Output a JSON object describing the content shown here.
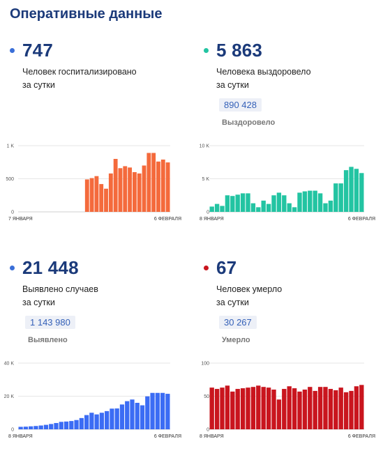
{
  "title": "Оперативные данные",
  "cards": [
    {
      "id": "hospitalized",
      "dot_color": "#3a6fd8",
      "value": "747",
      "desc_line1": "Человек госпитализировано",
      "desc_line2": "за сутки",
      "chart_data": {
        "type": "bar",
        "color": "#f46a3c",
        "y_ticks": [
          "1 K",
          "500",
          "0"
        ],
        "ylim": [
          0,
          1000
        ],
        "x_start_label": "7 ЯНВАРЯ",
        "x_end_label": "6 ФЕВРАЛЯ",
        "values": [
          null,
          null,
          null,
          null,
          null,
          null,
          null,
          null,
          null,
          null,
          null,
          null,
          null,
          null,
          490,
          510,
          540,
          420,
          350,
          580,
          800,
          660,
          690,
          670,
          600,
          580,
          700,
          890,
          890,
          760,
          790,
          747
        ]
      }
    },
    {
      "id": "recovered",
      "dot_color": "#23c4a2",
      "value": "5 863",
      "desc_line1": "Человека выздоровело",
      "desc_line2": "за сутки",
      "badge": "890 428",
      "badge_label": "Выздоровело",
      "chart_data": {
        "type": "bar",
        "color": "#23c4a2",
        "y_ticks": [
          "10 K",
          "5 K",
          "0"
        ],
        "ylim": [
          0,
          10000
        ],
        "x_start_label": "8 ЯНВАРЯ",
        "x_end_label": "6 ФЕВРАЛЯ",
        "values": [
          800,
          1200,
          900,
          2500,
          2400,
          2600,
          2800,
          2800,
          1300,
          700,
          1700,
          1200,
          2500,
          2900,
          2500,
          1300,
          700,
          2900,
          3100,
          3200,
          3200,
          2800,
          1300,
          1700,
          4300,
          4300,
          6300,
          6800,
          6500,
          5863
        ]
      }
    },
    {
      "id": "detected",
      "dot_color": "#3a6fd8",
      "value": "21 448",
      "desc_line1": "Выявлено случаев",
      "desc_line2": "за сутки",
      "badge": "1 143 980",
      "badge_label": "Выявлено",
      "chart_data": {
        "type": "bar",
        "color": "#3b6cf4",
        "y_ticks": [
          "40 K",
          "20 K",
          "0"
        ],
        "ylim": [
          0,
          40000
        ],
        "x_start_label": "8 ЯНВАРЯ",
        "x_end_label": "6 ФЕВРАЛЯ",
        "values": [
          1500,
          1600,
          1800,
          2000,
          2300,
          2700,
          3200,
          3800,
          4500,
          4700,
          5000,
          5600,
          6800,
          8600,
          10000,
          9000,
          10000,
          11000,
          12500,
          12600,
          15000,
          17000,
          18000,
          16000,
          14500,
          19900,
          22000,
          22000,
          22000,
          21448
        ]
      }
    },
    {
      "id": "deaths",
      "dot_color": "#c9151e",
      "value": "67",
      "desc_line1": "Человек умерло",
      "desc_line2": "за сутки",
      "badge": "30 267",
      "badge_label": "Умерло",
      "chart_data": {
        "type": "bar",
        "color": "#c9151e",
        "y_ticks": [
          "100",
          "50",
          "0"
        ],
        "ylim": [
          0,
          100
        ],
        "x_start_label": "8 ЯНВАРЯ",
        "x_end_label": "6 ФЕВРАЛЯ",
        "values": [
          63,
          61,
          63,
          66,
          57,
          61,
          62,
          63,
          64,
          66,
          64,
          63,
          60,
          45,
          61,
          65,
          62,
          57,
          60,
          64,
          58,
          64,
          64,
          61,
          59,
          63,
          56,
          58,
          65,
          67
        ]
      }
    }
  ]
}
